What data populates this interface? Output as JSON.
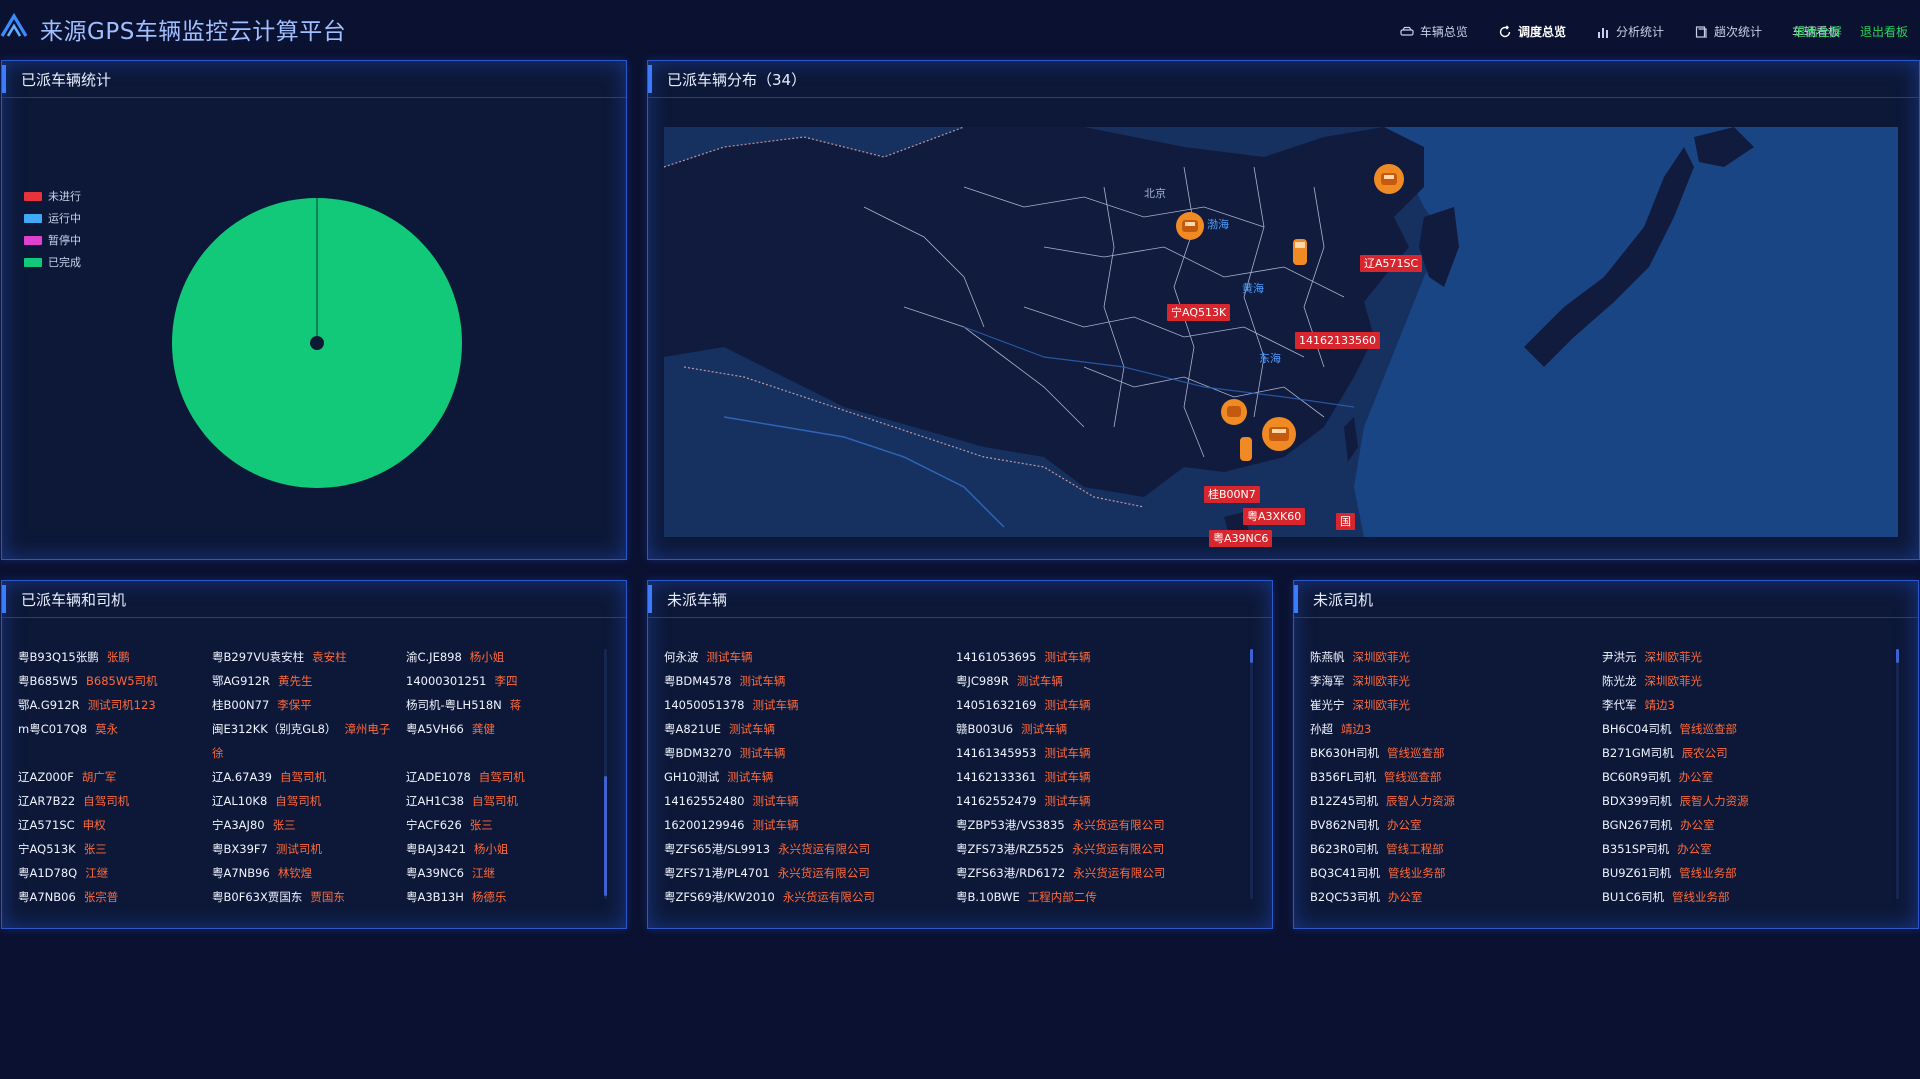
{
  "header": {
    "title": "来源GPS车辆监控云计算平台",
    "nav": [
      {
        "label": "车辆总览",
        "icon": "car-icon",
        "active": false
      },
      {
        "label": "调度总览",
        "icon": "refresh-icon",
        "active": true
      },
      {
        "label": "分析统计",
        "icon": "bar-chart-icon",
        "active": false
      },
      {
        "label": "趟次统计",
        "icon": "document-icon",
        "active": false
      },
      {
        "label": "车辆看板",
        "icon": "",
        "active": false
      }
    ],
    "exit_fullscreen": "退出全屏",
    "exit_board": "退出看板"
  },
  "dispatched_stats": {
    "title": "已派车辆统计",
    "legend": [
      {
        "label": "未进行",
        "color": "#e8323c"
      },
      {
        "label": "运行中",
        "color": "#3fa9f5"
      },
      {
        "label": "暂停中",
        "color": "#e040d0"
      },
      {
        "label": "已完成",
        "color": "#12c97a"
      }
    ],
    "chart_data": {
      "type": "pie",
      "categories": [
        "未进行",
        "运行中",
        "暂停中",
        "已完成"
      ],
      "values": [
        0,
        0,
        0,
        34
      ]
    }
  },
  "distribution": {
    "title": "已派车辆分布（34）",
    "sea_labels": [
      "渤海",
      "黄海",
      "东海"
    ],
    "city_labels": [
      "北京"
    ],
    "markers": [
      {
        "plate": "辽A571SC"
      },
      {
        "plate": "宁AQ513K"
      },
      {
        "plate": "14162133560"
      },
      {
        "plate": "桂B00N7"
      },
      {
        "plate": "粤A3XK60"
      },
      {
        "plate": "粤A39NC6"
      },
      {
        "plate": "国"
      }
    ]
  },
  "dispatched_list": {
    "title": "已派车辆和司机",
    "columns": [
      [
        {
          "plate": "粤B93Q15张鹏",
          "driver": "张鹏"
        },
        {
          "plate": "粤B685W5",
          "driver": "B685W5司机"
        },
        {
          "plate": "鄂A.G912R",
          "driver": "测试司机123"
        },
        {
          "plate": "m粤C017Q8",
          "driver": "莫永"
        },
        {
          "plate": "",
          "driver": ""
        },
        {
          "plate": "辽AZ000F",
          "driver": "胡广军"
        },
        {
          "plate": "辽AR7B22",
          "driver": "自驾司机"
        },
        {
          "plate": "辽A571SC",
          "driver": "申权"
        },
        {
          "plate": "宁AQ513K",
          "driver": "张三"
        },
        {
          "plate": "粤A1D78Q",
          "driver": "江继"
        },
        {
          "plate": "粤A7NB06",
          "driver": "张宗普"
        }
      ],
      [
        {
          "plate": "粤B297VU袁安柱",
          "driver": "袁安柱"
        },
        {
          "plate": "鄂AG912R",
          "driver": "黄先生"
        },
        {
          "plate": "桂B00N77",
          "driver": "李保平"
        },
        {
          "plate": "闽E312KK（别克GL8）",
          "driver": "漳州电子"
        },
        {
          "plate": "",
          "driver": "徐"
        },
        {
          "plate": "辽A.67A39",
          "driver": "自驾司机"
        },
        {
          "plate": "辽AL10K8",
          "driver": "自驾司机"
        },
        {
          "plate": "宁A3AJ80",
          "driver": "张三"
        },
        {
          "plate": "粤BX39F7",
          "driver": "测试司机"
        },
        {
          "plate": "粤A7NB96",
          "driver": "林钦煌"
        },
        {
          "plate": "粤B0F63X贾国东",
          "driver": "贾国东"
        }
      ],
      [
        {
          "plate": "渝C.JE898",
          "driver": "杨小姐"
        },
        {
          "plate": "14000301251",
          "driver": "李四"
        },
        {
          "plate": "杨司机-粤LH518N",
          "driver": "蒋"
        },
        {
          "plate": "粤A5VH66",
          "driver": "龚健"
        },
        {
          "plate": "",
          "driver": ""
        },
        {
          "plate": "辽ADE1078",
          "driver": "自驾司机"
        },
        {
          "plate": "辽AH1C38",
          "driver": "自驾司机"
        },
        {
          "plate": "宁ACF626",
          "driver": "张三"
        },
        {
          "plate": "粤BAJ3421",
          "driver": "杨小姐"
        },
        {
          "plate": "粤A39NC6",
          "driver": "江继"
        },
        {
          "plate": "粤A3B13H",
          "driver": "杨德乐"
        }
      ]
    ]
  },
  "undispatched_vehicles": {
    "title": "未派车辆",
    "columns": [
      [
        {
          "plate": "何永波",
          "driver": "测试车辆"
        },
        {
          "plate": "粤BDM4578",
          "driver": "测试车辆"
        },
        {
          "plate": "14050051378",
          "driver": "测试车辆"
        },
        {
          "plate": "粤A821UE",
          "driver": "测试车辆"
        },
        {
          "plate": "粤BDM3270",
          "driver": "测试车辆"
        },
        {
          "plate": "GH10测试",
          "driver": "测试车辆"
        },
        {
          "plate": "14162552480",
          "driver": "测试车辆"
        },
        {
          "plate": "16200129946",
          "driver": "测试车辆"
        },
        {
          "plate": "粤ZFS65港/SL9913",
          "driver": "永兴货运有限公司"
        },
        {
          "plate": "粤ZFS71港/PL4701",
          "driver": "永兴货运有限公司"
        },
        {
          "plate": "粤ZFS69港/KW2010",
          "driver": "永兴货运有限公司"
        }
      ],
      [
        {
          "plate": "14161053695",
          "driver": "测试车辆"
        },
        {
          "plate": "粤JC989R",
          "driver": "测试车辆"
        },
        {
          "plate": "14051632169",
          "driver": "测试车辆"
        },
        {
          "plate": "赣B003U6",
          "driver": "测试车辆"
        },
        {
          "plate": "14161345953",
          "driver": "测试车辆"
        },
        {
          "plate": "14162133361",
          "driver": "测试车辆"
        },
        {
          "plate": "14162552479",
          "driver": "测试车辆"
        },
        {
          "plate": "粤ZBP53港/VS3835",
          "driver": "永兴货运有限公司"
        },
        {
          "plate": "粤ZFS73港/RZ5525",
          "driver": "永兴货运有限公司"
        },
        {
          "plate": "粤ZFS63港/RD6172",
          "driver": "永兴货运有限公司"
        },
        {
          "plate": "粤B.10BWE",
          "driver": "工程内部二传"
        }
      ]
    ]
  },
  "undispatched_drivers": {
    "title": "未派司机",
    "columns": [
      [
        {
          "plate": "陈燕帆",
          "driver": "深圳欧菲光"
        },
        {
          "plate": "李海军",
          "driver": "深圳欧菲光"
        },
        {
          "plate": "崔光宁",
          "driver": "深圳欧菲光"
        },
        {
          "plate": "孙超",
          "driver": "靖边3"
        },
        {
          "plate": "BK630H司机",
          "driver": "管线巡查部"
        },
        {
          "plate": "B356FL司机",
          "driver": "管线巡查部"
        },
        {
          "plate": "B12Z45司机",
          "driver": "辰智人力资源"
        },
        {
          "plate": "BV862N司机",
          "driver": "办公室"
        },
        {
          "plate": "B623R0司机",
          "driver": "管线工程部"
        },
        {
          "plate": "BQ3C41司机",
          "driver": "管线业务部"
        },
        {
          "plate": "B2QC53司机",
          "driver": "办公室"
        }
      ],
      [
        {
          "plate": "尹洪元",
          "driver": "深圳欧菲光"
        },
        {
          "plate": "陈光龙",
          "driver": "深圳欧菲光"
        },
        {
          "plate": "李代军",
          "driver": "靖边3"
        },
        {
          "plate": "BH6C04司机",
          "driver": "管线巡查部"
        },
        {
          "plate": "B271GM司机",
          "driver": "辰农公司"
        },
        {
          "plate": "BC60R9司机",
          "driver": "办公室"
        },
        {
          "plate": "BDX399司机",
          "driver": "辰智人力资源"
        },
        {
          "plate": "BGN267司机",
          "driver": "办公室"
        },
        {
          "plate": "B351SP司机",
          "driver": "办公室"
        },
        {
          "plate": "BU9Z61司机",
          "driver": "管线业务部"
        },
        {
          "plate": "BU1C6司机",
          "driver": "管线业务部"
        }
      ]
    ]
  }
}
